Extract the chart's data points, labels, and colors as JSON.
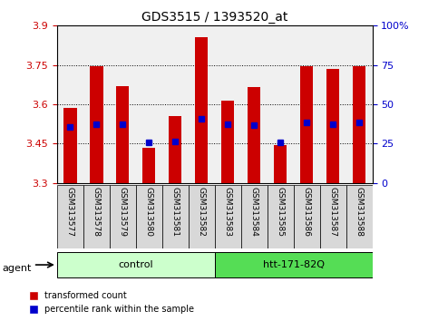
{
  "title": "GDS3515 / 1393520_at",
  "samples": [
    "GSM313577",
    "GSM313578",
    "GSM313579",
    "GSM313580",
    "GSM313581",
    "GSM313582",
    "GSM313583",
    "GSM313584",
    "GSM313585",
    "GSM313586",
    "GSM313587",
    "GSM313588"
  ],
  "bar_values": [
    3.585,
    3.745,
    3.67,
    3.435,
    3.555,
    3.855,
    3.615,
    3.665,
    3.445,
    3.745,
    3.735,
    3.745
  ],
  "percentile_values": [
    3.515,
    3.525,
    3.525,
    3.455,
    3.46,
    3.545,
    3.525,
    3.52,
    3.455,
    3.53,
    3.525,
    3.53
  ],
  "ymin": 3.3,
  "ymax": 3.9,
  "yticks": [
    3.3,
    3.45,
    3.6,
    3.75,
    3.9
  ],
  "ytick_labels": [
    "3.3",
    "3.45",
    "3.6",
    "3.75",
    "3.9"
  ],
  "right_yticks": [
    0,
    25,
    50,
    75,
    100
  ],
  "right_ytick_labels": [
    "0",
    "25",
    "50",
    "75",
    "100%"
  ],
  "bar_color": "#cc0000",
  "percentile_color": "#0000cc",
  "bar_bottom": 3.3,
  "groups": [
    {
      "label": "control",
      "start": 0,
      "end": 6,
      "color": "#ccffcc"
    },
    {
      "label": "htt-171-82Q",
      "start": 6,
      "end": 12,
      "color": "#55dd55"
    }
  ],
  "agent_label": "agent",
  "legend_items": [
    {
      "color": "#cc0000",
      "label": "transformed count"
    },
    {
      "color": "#0000cc",
      "label": "percentile rank within the sample"
    }
  ],
  "tick_color": "#cc0000",
  "right_tick_color": "#0000cc",
  "plot_bg": "#f0f0f0",
  "bar_width": 0.5
}
